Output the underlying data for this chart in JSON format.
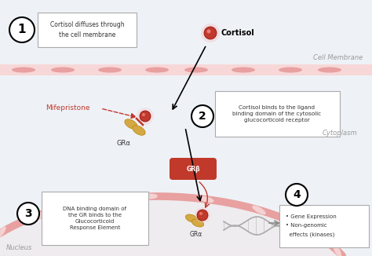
{
  "bg_color": "#eef2f7",
  "cell_membrane_label": "Cell Membrane",
  "nucleus_label": "Nucleus",
  "cytoplasm_label": "Cytoplasm",
  "cortisol_label": "Cortisol",
  "mifepristone_label": "Mifepristone",
  "GRa_label": "GRα",
  "GRb_label": "GRβ",
  "step1_text": "Cortisol diffuses through\nthe cell membrane",
  "step2_text": "Cortisol binds to the ligand\nbinding domain of the cytosolic\nglucocorticoid receptor",
  "step3_text": "DNA binding domain of\nthe GR binds to the\nGlucocorticoid\nResponse Element",
  "step4_line1": "• Gene Expression",
  "step4_line2": "• Non-genomic",
  "step4_line3": "  effects (kinases)",
  "red_dark": "#c0392b",
  "red_light": "#f5c0c0",
  "gold": "#d4a843",
  "gold_dark": "#b8860b",
  "arrow_color": "#555555",
  "text_color": "#333333",
  "box_border": "#aaaaaa",
  "mifepristone_color": "#c0392b",
  "membrane_band": "#f7d7d7",
  "membrane_dash": "#e8a0a0",
  "nucleus_fill": "#f0e8e8",
  "dna_color": "#aaaaaa",
  "dna_rung": "#cccccc"
}
